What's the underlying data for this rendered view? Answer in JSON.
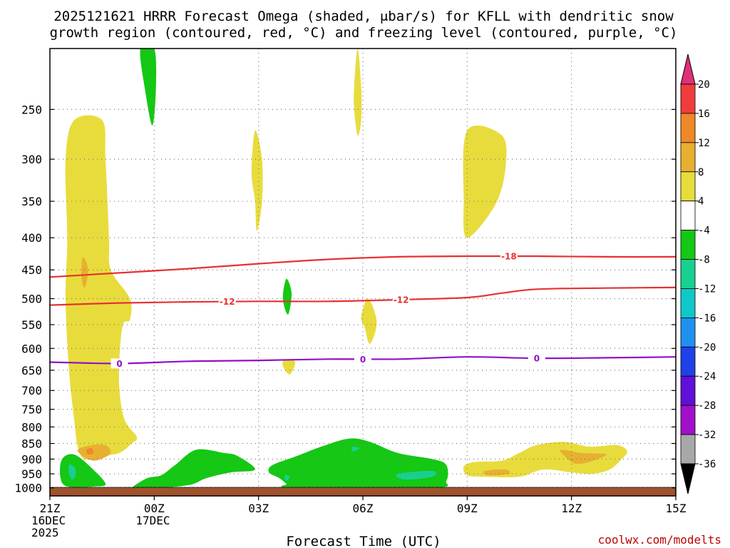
{
  "chart_data": {
    "type": "heatmap",
    "title_lines": [
      "2025121621 HRRR Forecast Omega (shaded, μbar/s) for KFLL with dendritic snow",
      "growth region (contoured, red, °C) and freezing level (contoured, purple, °C)"
    ],
    "xlabel": "Forecast Time (UTC)",
    "credit": "coolwx.com/modelts",
    "x_axis": {
      "range_hours": [
        0,
        18
      ],
      "ticks": [
        {
          "h": 0,
          "lines": [
            "21Z",
            "16DEC",
            "2025"
          ]
        },
        {
          "h": 3,
          "lines": [
            "00Z",
            "17DEC"
          ]
        },
        {
          "h": 6,
          "lines": [
            "03Z"
          ]
        },
        {
          "h": 9,
          "lines": [
            "06Z"
          ]
        },
        {
          "h": 12,
          "lines": [
            "09Z"
          ]
        },
        {
          "h": 15,
          "lines": [
            "12Z"
          ]
        },
        {
          "h": 18,
          "lines": [
            "15Z"
          ]
        }
      ]
    },
    "y_axis": {
      "unit": "hPa",
      "range": [
        1030,
        200
      ],
      "ticks": [
        250,
        300,
        350,
        400,
        450,
        500,
        550,
        600,
        650,
        700,
        750,
        800,
        850,
        900,
        950,
        1000
      ]
    },
    "colorbar": {
      "labels": [
        "20",
        "16",
        "12",
        "8",
        "4",
        "-4",
        "-8",
        "-12",
        "-16",
        "-20",
        "-24",
        "-28",
        "-32",
        "-36"
      ],
      "bins": [
        {
          "color": "#e0307a"
        },
        {
          "color": "#f03c3c"
        },
        {
          "color": "#ee8828"
        },
        {
          "color": "#e8b030"
        },
        {
          "color": "#e8dc3c"
        },
        {
          "color": "#ffffff"
        },
        {
          "color": "#14c814"
        },
        {
          "color": "#18d090"
        },
        {
          "color": "#10c8c8"
        },
        {
          "color": "#2090f0"
        },
        {
          "color": "#2040e8"
        },
        {
          "color": "#6010d8"
        },
        {
          "color": "#a010c8"
        },
        {
          "color": "#a8a8a8"
        },
        {
          "color": "#000000"
        }
      ]
    },
    "shaded_regions": [
      {
        "level": "4 to 8",
        "color": "#e8dc3c",
        "points": [
          [
            0.7,
            260
          ],
          [
            1.5,
            260
          ],
          [
            1.6,
            300
          ],
          [
            1.7,
            400
          ],
          [
            1.75,
            450
          ],
          [
            2.3,
            500
          ],
          [
            2.3,
            540
          ],
          [
            2.1,
            550
          ],
          [
            2.0,
            620
          ],
          [
            2.0,
            700
          ],
          [
            2.15,
            780
          ],
          [
            2.5,
            830
          ],
          [
            2.35,
            850
          ],
          [
            2.0,
            880
          ],
          [
            1.5,
            890
          ],
          [
            1.0,
            900
          ],
          [
            0.8,
            860
          ],
          [
            0.7,
            780
          ],
          [
            0.55,
            650
          ],
          [
            0.45,
            500
          ],
          [
            0.5,
            400
          ],
          [
            0.45,
            300
          ]
        ]
      },
      {
        "level": "8 to 12",
        "color": "#e8b030",
        "points": [
          [
            0.8,
            870
          ],
          [
            1.2,
            855
          ],
          [
            1.6,
            855
          ],
          [
            1.75,
            875
          ],
          [
            1.65,
            890
          ],
          [
            1.3,
            905
          ],
          [
            1.0,
            895
          ]
        ]
      },
      {
        "level": "8 to 12",
        "color": "#e8b030",
        "points": [
          [
            0.95,
            430
          ],
          [
            1.1,
            450
          ],
          [
            1.0,
            480
          ],
          [
            0.9,
            460
          ]
        ]
      },
      {
        "level": "12 to 16",
        "color": "#ee8828",
        "points": [
          [
            1.05,
            870
          ],
          [
            1.2,
            865
          ],
          [
            1.25,
            880
          ],
          [
            1.1,
            885
          ]
        ]
      },
      {
        "level": "4 to 8",
        "color": "#e8dc3c",
        "points": [
          [
            5.9,
            270
          ],
          [
            6.1,
            300
          ],
          [
            6.1,
            350
          ],
          [
            5.95,
            390
          ],
          [
            5.9,
            350
          ],
          [
            5.8,
            315
          ]
        ]
      },
      {
        "level": "4 to 8",
        "color": "#e8dc3c",
        "points": [
          [
            8.85,
            200
          ],
          [
            8.95,
            230
          ],
          [
            8.95,
            260
          ],
          [
            8.85,
            275
          ],
          [
            8.75,
            250
          ],
          [
            8.75,
            230
          ]
        ]
      },
      {
        "level": "4 to 8",
        "color": "#e8dc3c",
        "points": [
          [
            9.15,
            500
          ],
          [
            9.4,
            545
          ],
          [
            9.2,
            590
          ],
          [
            9.05,
            555
          ],
          [
            8.95,
            535
          ]
        ]
      },
      {
        "level": "4 to 8",
        "color": "#e8dc3c",
        "points": [
          [
            6.75,
            625
          ],
          [
            7.05,
            630
          ],
          [
            6.9,
            660
          ],
          [
            6.7,
            640
          ]
        ]
      },
      {
        "level": "4 to 8",
        "color": "#e8dc3c",
        "points": [
          [
            12.0,
            270
          ],
          [
            13.0,
            275
          ],
          [
            13.1,
            310
          ],
          [
            12.8,
            355
          ],
          [
            12.0,
            400
          ],
          [
            11.9,
            350
          ]
        ]
      },
      {
        "level": "4 to 8",
        "color": "#e8dc3c",
        "points": [
          [
            11.9,
            925
          ],
          [
            12.2,
            910
          ],
          [
            13.0,
            905
          ],
          [
            13.5,
            880
          ],
          [
            14.0,
            855
          ],
          [
            14.8,
            845
          ],
          [
            15.5,
            860
          ],
          [
            16.3,
            855
          ],
          [
            16.6,
            875
          ],
          [
            16.4,
            905
          ],
          [
            16.1,
            935
          ],
          [
            15.6,
            950
          ],
          [
            15.0,
            945
          ],
          [
            14.2,
            935
          ],
          [
            13.5,
            960
          ],
          [
            12.5,
            960
          ],
          [
            12.0,
            955
          ]
        ]
      },
      {
        "level": "8 to 12",
        "color": "#e8b030",
        "points": [
          [
            14.7,
            870
          ],
          [
            15.3,
            880
          ],
          [
            16.0,
            885
          ],
          [
            15.5,
            910
          ],
          [
            15.1,
            915
          ],
          [
            14.8,
            890
          ]
        ]
      },
      {
        "level": "8 to 12",
        "color": "#e8b030",
        "points": [
          [
            12.5,
            940
          ],
          [
            13.1,
            935
          ],
          [
            13.2,
            950
          ],
          [
            12.6,
            955
          ]
        ]
      },
      {
        "level": "-4 to -8",
        "color": "#14c814",
        "points": [
          [
            2.6,
            200
          ],
          [
            3.0,
            200
          ],
          [
            3.05,
            230
          ],
          [
            2.95,
            265
          ],
          [
            2.75,
            235
          ]
        ]
      },
      {
        "level": "-4 to -8",
        "color": "#14c814",
        "points": [
          [
            6.8,
            465
          ],
          [
            6.95,
            490
          ],
          [
            6.85,
            530
          ],
          [
            6.7,
            500
          ]
        ]
      },
      {
        "level": "-4 to -8",
        "color": "#14c814",
        "points": [
          [
            0.35,
            900
          ],
          [
            0.7,
            885
          ],
          [
            1.2,
            930
          ],
          [
            1.6,
            985
          ],
          [
            1.3,
            995
          ],
          [
            0.5,
            995
          ],
          [
            0.3,
            960
          ]
        ]
      },
      {
        "level": "-4 to -8",
        "color": "#14c814",
        "points": [
          [
            2.4,
            995
          ],
          [
            2.8,
            965
          ],
          [
            3.2,
            955
          ],
          [
            3.6,
            920
          ],
          [
            4.2,
            870
          ],
          [
            5.0,
            880
          ],
          [
            5.4,
            890
          ],
          [
            5.9,
            935
          ],
          [
            5.2,
            945
          ],
          [
            4.5,
            965
          ],
          [
            4.0,
            990
          ],
          [
            3.0,
            1000
          ],
          [
            2.5,
            1000
          ]
        ]
      },
      {
        "level": "-4 to -8",
        "color": "#14c814",
        "points": [
          [
            6.4,
            920
          ],
          [
            7.1,
            890
          ],
          [
            7.8,
            860
          ],
          [
            8.6,
            835
          ],
          [
            9.2,
            845
          ],
          [
            10.0,
            880
          ],
          [
            11.0,
            900
          ],
          [
            11.4,
            920
          ],
          [
            11.4,
            975
          ],
          [
            11.0,
            1000
          ],
          [
            7.0,
            1000
          ],
          [
            6.8,
            985
          ],
          [
            6.6,
            965
          ],
          [
            6.3,
            945
          ]
        ]
      },
      {
        "level": "-8 to -12",
        "color": "#18d090",
        "points": [
          [
            0.55,
            920
          ],
          [
            0.7,
            925
          ],
          [
            0.75,
            950
          ],
          [
            0.65,
            970
          ],
          [
            0.55,
            950
          ]
        ]
      },
      {
        "level": "-8 to -12",
        "color": "#18d090",
        "points": [
          [
            10.0,
            950
          ],
          [
            11.0,
            940
          ],
          [
            11.0,
            960
          ],
          [
            10.2,
            970
          ]
        ]
      },
      {
        "level": "-8 to -12",
        "color": "#18d090",
        "points": [
          [
            8.7,
            860
          ],
          [
            8.9,
            865
          ],
          [
            8.7,
            875
          ]
        ]
      },
      {
        "level": "-8 to -12",
        "color": "#18d090",
        "points": [
          [
            6.75,
            955
          ],
          [
            6.9,
            960
          ],
          [
            6.8,
            975
          ]
        ]
      }
    ],
    "contours": [
      {
        "name": "-18",
        "color": "#e83030",
        "label_at_hour": 13.2,
        "points": [
          [
            0,
            462
          ],
          [
            2,
            455
          ],
          [
            4,
            448
          ],
          [
            6,
            440
          ],
          [
            8,
            433
          ],
          [
            10,
            429
          ],
          [
            12,
            428
          ],
          [
            14,
            428
          ],
          [
            16,
            429
          ],
          [
            18,
            429
          ]
        ]
      },
      {
        "name": "-12",
        "color": "#e83030",
        "label_at_hour": 5.1,
        "label2_at_hour": 10.1,
        "points": [
          [
            0,
            512
          ],
          [
            2,
            508
          ],
          [
            4,
            506
          ],
          [
            6,
            505
          ],
          [
            8,
            505
          ],
          [
            10,
            502
          ],
          [
            12,
            498
          ],
          [
            13,
            490
          ],
          [
            14,
            483
          ],
          [
            16,
            481
          ],
          [
            18,
            480
          ]
        ]
      },
      {
        "name": "0",
        "color": "#9010c8",
        "label_at_hour": 2.0,
        "label2_at_hour": 9.0,
        "label3_at_hour": 14.0,
        "points": [
          [
            0,
            631
          ],
          [
            2,
            634
          ],
          [
            4,
            629
          ],
          [
            6,
            627
          ],
          [
            8,
            624
          ],
          [
            10,
            624
          ],
          [
            12,
            619
          ],
          [
            14,
            622
          ],
          [
            16,
            621
          ],
          [
            18,
            619
          ]
        ]
      }
    ]
  }
}
